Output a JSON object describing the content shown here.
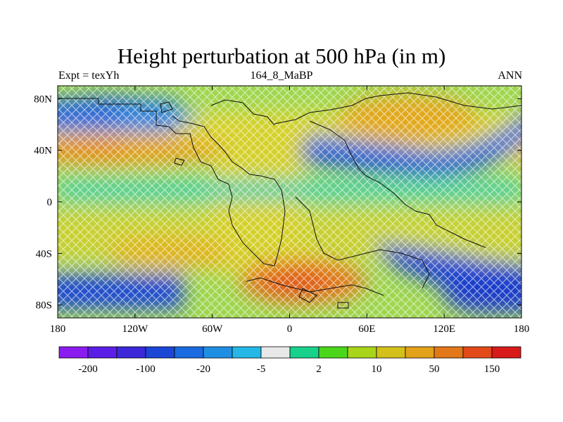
{
  "title": "Height perturbation at 500 hPa (in m)",
  "subtitle_left": "Expt = texYh",
  "subtitle_center": "164_8_MaBP",
  "subtitle_right": "ANN",
  "x_ticks": [
    "180",
    "120W",
    "60W",
    "0",
    "60E",
    "120E",
    "180"
  ],
  "y_ticks": [
    "80N",
    "40N",
    "0",
    "40S",
    "80S"
  ],
  "colorbar": {
    "colors": [
      "#8a1cf0",
      "#5b1ee6",
      "#3c28d8",
      "#1c46d6",
      "#1a6ae0",
      "#1f8fe4",
      "#25b8e6",
      "#e8e8e8",
      "#18d18a",
      "#4bd61c",
      "#a8d41a",
      "#d4c01a",
      "#e2a21a",
      "#e2781a",
      "#e24a1a",
      "#d81a1a"
    ],
    "labels": [
      "-200",
      "-100",
      "-20",
      "-5",
      "2",
      "10",
      "50",
      "150"
    ]
  },
  "chart_data": {
    "type": "heatmap",
    "title": "Height perturbation at 500 hPa (in m)",
    "xlabel": "",
    "ylabel": "",
    "xlim": [
      -180,
      180
    ],
    "ylim": [
      -90,
      90
    ],
    "x_ticks": [
      -180,
      -120,
      -60,
      0,
      60,
      120,
      180
    ],
    "y_ticks": [
      80,
      40,
      0,
      -40,
      -80
    ],
    "levels": [
      -200,
      -100,
      -20,
      -5,
      2,
      10,
      50,
      150
    ],
    "features": [
      {
        "description": "negative anomaly",
        "lon_range": [
          -180,
          -100
        ],
        "lat_range": [
          60,
          80
        ]
      },
      {
        "description": "positive anomaly",
        "lon_range": [
          -180,
          -40
        ],
        "lat_range": [
          30,
          50
        ]
      },
      {
        "description": "positive anomaly",
        "lon_range": [
          60,
          140
        ],
        "lat_range": [
          55,
          75
        ]
      },
      {
        "description": "negative anomaly",
        "lon_range": [
          30,
          180
        ],
        "lat_range": [
          25,
          60
        ]
      },
      {
        "description": "positive anomaly",
        "lon_range": [
          -40,
          80
        ],
        "lat_range": [
          -75,
          -55
        ]
      },
      {
        "description": "negative anomaly",
        "lon_range": [
          -180,
          -60
        ],
        "lat_range": [
          -80,
          -60
        ]
      },
      {
        "description": "negative anomaly",
        "lon_range": [
          80,
          180
        ],
        "lat_range": [
          -60,
          -30
        ]
      }
    ]
  }
}
